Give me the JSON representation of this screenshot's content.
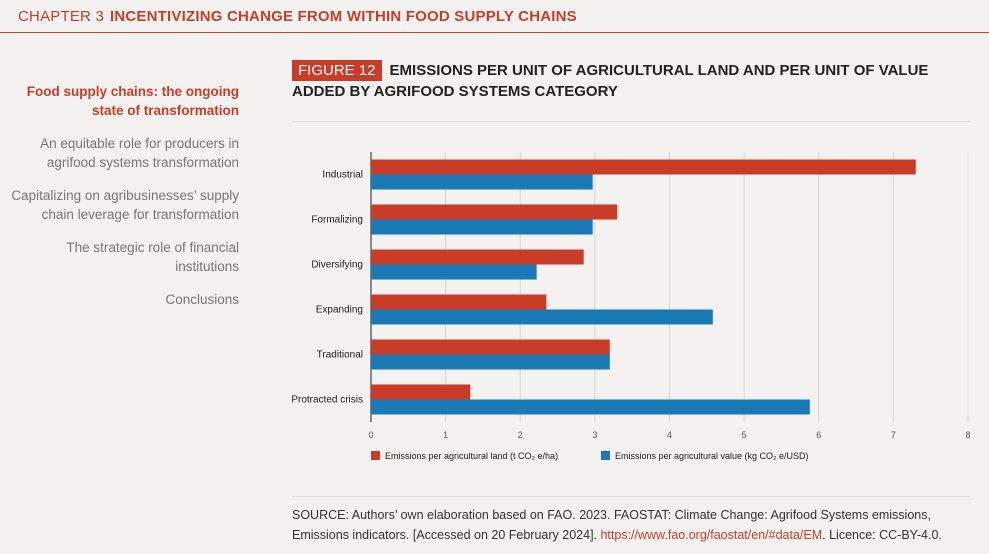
{
  "header": {
    "chapter": "CHAPTER 3",
    "title": "INCENTIVIZING CHANGE FROM WITHIN FOOD SUPPLY CHAINS"
  },
  "sidebar": {
    "items": [
      {
        "label": "Food supply chains: the ongoing state of transformation",
        "active": true
      },
      {
        "label": "An equitable role for producers in agrifood systems transformation",
        "active": false
      },
      {
        "label": "Capitalizing on agribusinesses’ supply chain leverage for transformation",
        "active": false
      },
      {
        "label": "The strategic role of financial institutions",
        "active": false
      },
      {
        "label": "Conclusions",
        "active": false
      }
    ]
  },
  "figure": {
    "tag": "FIGURE 12",
    "title": "EMISSIONS PER UNIT OF AGRICULTURAL LAND AND PER UNIT OF VALUE ADDED BY AGRIFOOD SYSTEMS CATEGORY"
  },
  "chart_data": {
    "type": "bar",
    "orientation": "horizontal",
    "categories": [
      "Industrial",
      "Formalizing",
      "Diversifying",
      "Expanding",
      "Traditional",
      "Protracted crisis"
    ],
    "series": [
      {
        "name": "Emissions per agricultural land (t CO₂ e/ha)",
        "color": "#c83c28",
        "values": [
          7.3,
          3.3,
          2.85,
          2.35,
          3.2,
          1.33
        ]
      },
      {
        "name": "Emissions per agricultural value (kg CO₂ e/USD)",
        "color": "#1a7ab5",
        "values": [
          2.97,
          2.97,
          2.22,
          4.58,
          3.2,
          5.88
        ]
      }
    ],
    "xlim": [
      0,
      8
    ],
    "xticks": [
      "0",
      "1",
      "2",
      "3",
      "4",
      "5",
      "6",
      "7",
      "8"
    ],
    "grid": true,
    "legend": "bottom"
  },
  "source": {
    "text": "SOURCE: Authors’ own elaboration based on FAO. 2023. FAOSTAT: Climate Change: Agrifood Systems emissions, Emissions indicators. [Accessed on 20 February 2024]. ",
    "link": "https://www.fao.org/faostat/en/#data/EM",
    "suffix": ". Licence: CC-BY-4.0."
  }
}
